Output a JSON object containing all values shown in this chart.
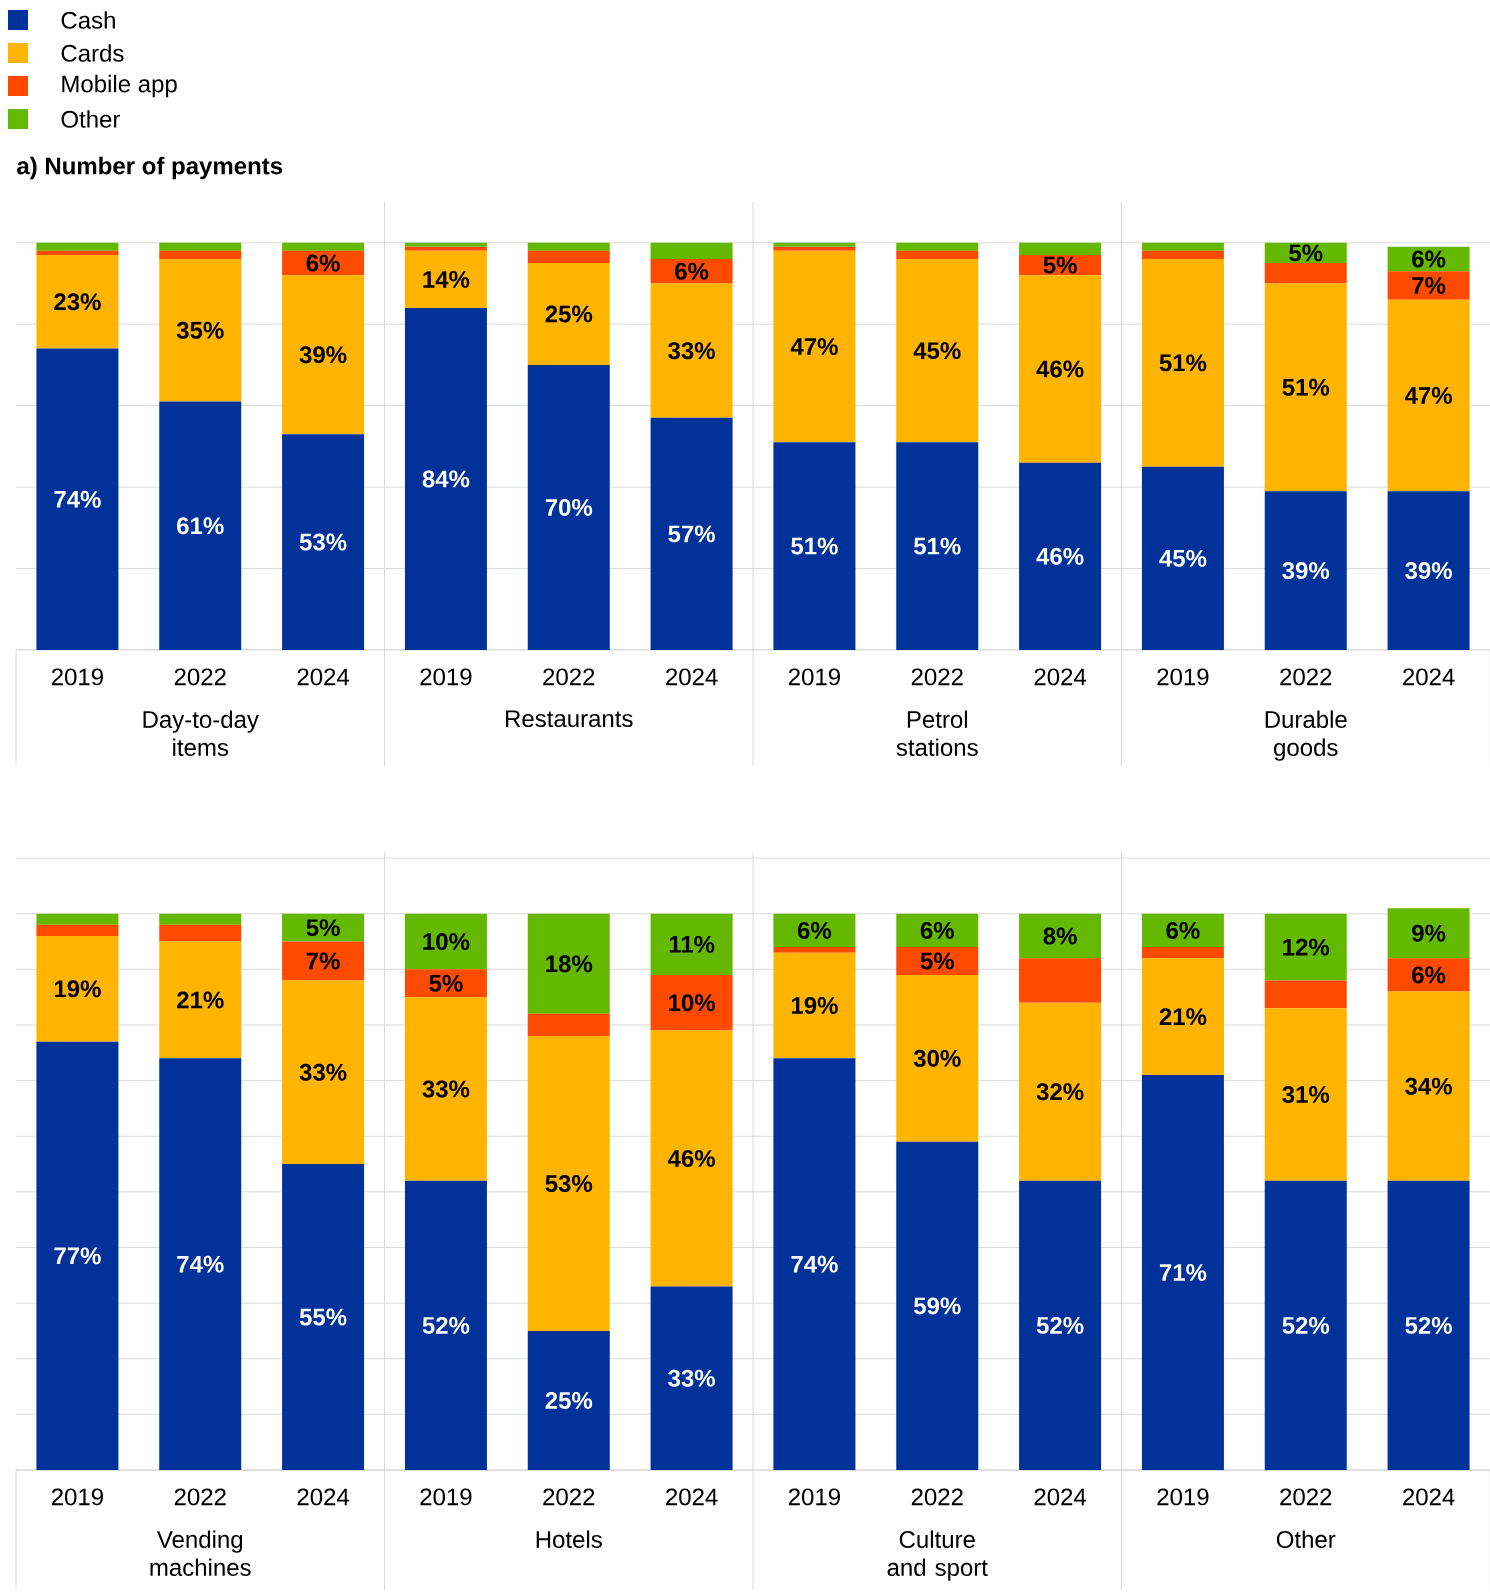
{
  "chart_data": [
    {
      "type": "bar",
      "stacked": true,
      "title": "a) Number of payments",
      "categories": [
        "2019",
        "2022",
        "2024",
        "2019",
        "2022",
        "2024",
        "2019",
        "2022",
        "2024",
        "2019",
        "2022",
        "2024"
      ],
      "annotations": [
        "Day-to-day items",
        "Restaurants",
        "Petrol stations",
        "Durable goods"
      ],
      "series": [
        {
          "name": "Cash",
          "color": "#003299",
          "values": [
            74,
            61,
            53,
            84,
            70,
            57,
            51,
            51,
            46,
            45,
            39,
            39
          ],
          "value_labels": [
            "74%",
            "61%",
            "53%",
            "84%",
            "70%",
            "57%",
            "51%",
            "51%",
            "46%",
            "45%",
            "39%",
            "39%"
          ]
        },
        {
          "name": "Cards",
          "color": "#ffb400",
          "values": [
            23,
            35,
            39,
            14,
            25,
            33,
            47,
            45,
            46,
            51,
            51,
            47
          ],
          "value_labels": [
            "23%",
            "35%",
            "39%",
            "14%",
            "25%",
            "33%",
            "47%",
            "45%",
            "46%",
            "51%",
            "51%",
            "47%"
          ]
        },
        {
          "name": "Mobile app",
          "color": "#ff4b00",
          "values": [
            1,
            2,
            6,
            1,
            3,
            6,
            1,
            2,
            5,
            2,
            5,
            7
          ],
          "value_labels": [
            null,
            null,
            "6%",
            null,
            null,
            "6%",
            null,
            null,
            "5%",
            null,
            null,
            "7%"
          ]
        },
        {
          "name": "Other",
          "color": "#65b800",
          "values": [
            2,
            2,
            2,
            1,
            2,
            4,
            1,
            2,
            3,
            2,
            5,
            6
          ],
          "value_labels": [
            null,
            null,
            null,
            null,
            null,
            null,
            null,
            null,
            null,
            null,
            "5%",
            "6%"
          ]
        }
      ],
      "grid": "y",
      "tick_labels": "x",
      "legend": "top left"
    },
    {
      "type": "bar",
      "stacked": true,
      "categories": [
        "2019",
        "2022",
        "2024",
        "2019",
        "2022",
        "2024",
        "2019",
        "2022",
        "2024",
        "2019",
        "2022",
        "2024"
      ],
      "annotations": [
        "Vending machines",
        "Hotels",
        "Culture and sport",
        "Other"
      ],
      "series": [
        {
          "color": "#003299",
          "values": [
            77,
            74,
            55,
            52,
            25,
            33,
            74,
            59,
            52,
            71,
            52,
            52
          ],
          "value_labels": [
            "77%",
            "74%",
            "55%",
            "52%",
            "25%",
            "33%",
            "74%",
            "59%",
            "52%",
            "71%",
            "52%",
            "52%"
          ]
        },
        {
          "color": "#ffb400",
          "values": [
            19,
            21,
            33,
            33,
            53,
            46,
            19,
            30,
            32,
            21,
            31,
            34
          ],
          "value_labels": [
            "19%",
            "21%",
            "33%",
            "33%",
            "53%",
            "46%",
            "19%",
            "30%",
            "32%",
            "21%",
            "31%",
            "34%"
          ]
        },
        {
          "color": "#ff4b00",
          "values": [
            2,
            3,
            7,
            5,
            4,
            10,
            1,
            5,
            8,
            2,
            5,
            6
          ],
          "value_labels": [
            null,
            null,
            "7%",
            "5%",
            null,
            "10%",
            null,
            "5%",
            null,
            null,
            null,
            "6%"
          ]
        },
        {
          "color": "#65b800",
          "values": [
            2,
            2,
            5,
            10,
            18,
            11,
            6,
            6,
            8,
            6,
            12,
            9
          ],
          "value_labels": [
            null,
            null,
            "5%",
            "10%",
            "18%",
            "11%",
            "6%",
            "6%",
            "8%",
            "6%",
            "12%",
            "9%"
          ]
        }
      ],
      "grid": "y",
      "tick_labels": "x"
    }
  ]
}
